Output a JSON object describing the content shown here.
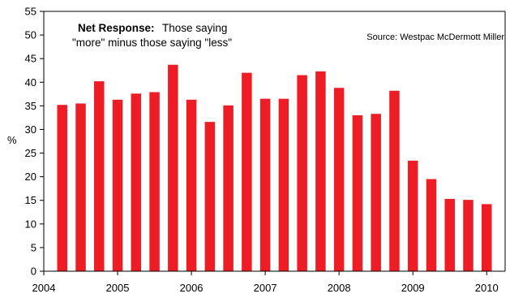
{
  "chart_data": {
    "type": "bar",
    "title": "",
    "xlabel": "",
    "ylabel": "%",
    "ylim": [
      0,
      55
    ],
    "y_ticks": [
      0,
      5,
      10,
      15,
      20,
      25,
      30,
      35,
      40,
      45,
      50,
      55
    ],
    "xlim": [
      2004.0,
      2010.25
    ],
    "x_ticks": [
      2004,
      2005,
      2006,
      2007,
      2008,
      2009,
      2010
    ],
    "grid": false,
    "bar_color": "#ee1c25",
    "x": [
      2004.25,
      2004.5,
      2004.75,
      2005.0,
      2005.25,
      2005.5,
      2005.75,
      2006.0,
      2006.25,
      2006.5,
      2006.75,
      2007.0,
      2007.25,
      2007.5,
      2007.75,
      2008.0,
      2008.25,
      2008.5,
      2008.75,
      2009.0,
      2009.25,
      2009.5,
      2009.75,
      2010.0
    ],
    "values": [
      35.2,
      35.5,
      40.2,
      36.3,
      37.6,
      37.9,
      43.7,
      36.3,
      31.6,
      35.1,
      42.0,
      36.5,
      36.5,
      41.5,
      42.3,
      38.8,
      33.0,
      33.3,
      38.2,
      23.4,
      19.5,
      15.3,
      15.1,
      14.2
    ],
    "annotation": {
      "bold": "Net Response:",
      "line1": "Those saying",
      "line2": "\"more\" minus those saying \"less\""
    },
    "source": "Source: Westpac McDermott Miller"
  }
}
